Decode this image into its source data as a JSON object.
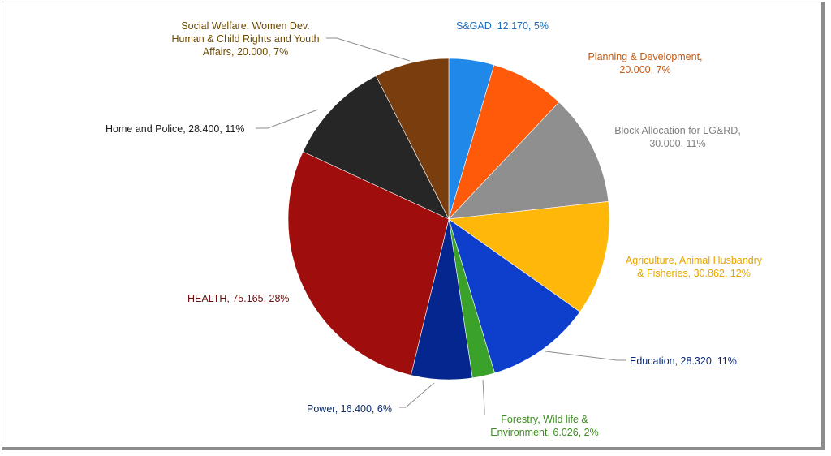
{
  "chart_data": {
    "type": "pie",
    "title": "",
    "slices": [
      {
        "name": "S&GAD",
        "value": 12.17,
        "value_text": "12.170",
        "pct": "5%",
        "color": "#1f88e8"
      },
      {
        "name": "Planning & Development",
        "value": 20.0,
        "value_text": "20.000",
        "pct": "7%",
        "color": "#ff5a0a"
      },
      {
        "name": "Block Allocation for LG&RD",
        "value": 30.0,
        "value_text": "30.000",
        "pct": "11%",
        "color": "#8f8f8f"
      },
      {
        "name": "Agriculture, Animal Husbandry & Fisheries",
        "value": 30.862,
        "value_text": "30.862",
        "pct": "12%",
        "color": "#ffb80a"
      },
      {
        "name": "Education",
        "value": 28.32,
        "value_text": "28.320",
        "pct": "11%",
        "color": "#0e3fcc"
      },
      {
        "name": "Forestry, Wild life & Environment",
        "value": 6.026,
        "value_text": "6.026",
        "pct": "2%",
        "color": "#3aa12b"
      },
      {
        "name": "Power",
        "value": 16.4,
        "value_text": "16.400",
        "pct": "6%",
        "color": "#06268f"
      },
      {
        "name": "HEALTH",
        "value": 75.165,
        "value_text": "75.165",
        "pct": "28%",
        "color": "#a00d0d"
      },
      {
        "name": "Home and Police",
        "value": 28.4,
        "value_text": "28.400",
        "pct": "11%",
        "color": "#262626"
      },
      {
        "name": "Social Welfare, Women Dev. Human & Child Rights and Youth Affairs",
        "value": 20.0,
        "value_text": "20.000",
        "pct": "7%",
        "color": "#7a3d0d"
      }
    ],
    "labels": {
      "sgad": "S&GAD, 12.170, 5%",
      "planning_1": "Planning & Development,",
      "planning_2": "20.000, 7%",
      "block_1": "Block Allocation for LG&RD,",
      "block_2": "30.000, 11%",
      "agri_1": "Agriculture, Animal Husbandry",
      "agri_2": "& Fisheries, 30.862, 12%",
      "education": "Education, 28.320, 11%",
      "forestry_1": "Forestry, Wild life &",
      "forestry_2": "Environment, 6.026, 2%",
      "power": "Power, 16.400, 6%",
      "health": "HEALTH, 75.165, 28%",
      "home": "Home and Police, 28.400, 11%",
      "social_1": "Social Welfare, Women Dev.",
      "social_2": "Human & Child Rights and Youth",
      "social_3": "Affairs, 20.000, 7%"
    },
    "label_colors": {
      "sgad": "#1f6fbf",
      "planning": "#c55a11",
      "block": "#7f7f7f",
      "agri": "#e6a400",
      "education": "#0b2a7a",
      "forestry": "#3c8d1f",
      "power": "#0b2a6a",
      "health": "#6b1010",
      "home": "#1a1a1a",
      "social": "#6b4a00"
    }
  }
}
